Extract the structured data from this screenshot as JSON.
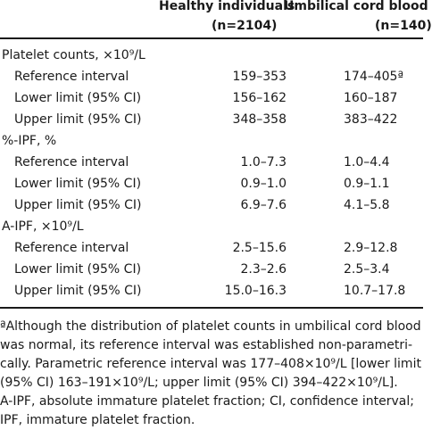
{
  "header": {
    "col1": "Healthy individuals",
    "col1_n": "(n=2104)",
    "col2": "Umbilical cord blood",
    "col2_n": "(n=140)"
  },
  "rows": [
    {
      "label": "Platelet counts, ×10⁹/L",
      "v1": "",
      "v2": ""
    },
    {
      "label": "Reference interval",
      "v1": "159–353",
      "v2": "174–405ª"
    },
    {
      "label": "Lower limit (95% CI)",
      "v1": "156–162",
      "v2": "160–187"
    },
    {
      "label": "Upper limit (95% CI)",
      "v1": "348–358",
      "v2": "383–422"
    },
    {
      "label": "%-IPF, %",
      "v1": "",
      "v2": ""
    },
    {
      "label": "Reference interval",
      "v1": "1.0–7.3",
      "v2": "1.0–4.4"
    },
    {
      "label": "Lower limit (95% CI)",
      "v1": "0.9–1.0",
      "v2": "0.9–1.1"
    },
    {
      "label": "Upper limit (95% CI)",
      "v1": "6.9–7.6",
      "v2": "4.1–5.8"
    },
    {
      "label": "A-IPF, ×10⁹/L",
      "v1": "",
      "v2": ""
    },
    {
      "label": "Reference interval",
      "v1": "2.5–15.6",
      "v2": "2.9–12.8"
    },
    {
      "label": "Lower limit (95% CI)",
      "v1": "2.3–2.6",
      "v2": "2.5–3.4"
    },
    {
      "label": "Upper limit (95% CI)",
      "v1": "15.0–16.3",
      "v2": "10.7–17.8"
    }
  ],
  "footnotes": [
    "ªAlthough the distribution of platelet counts in umbilical cord blood",
    "was normal, its reference interval was established non-parametri-",
    "cally. Parametric reference interval was 177–408×10⁹/L [lower limit",
    "(95% CI) 163–191×10⁹/L; upper limit (95% CI) 394–422×10⁹/L].",
    "A-IPF, absolute immature platelet fraction; CI, confidence interval;",
    "IPF, immature platelet fraction."
  ]
}
